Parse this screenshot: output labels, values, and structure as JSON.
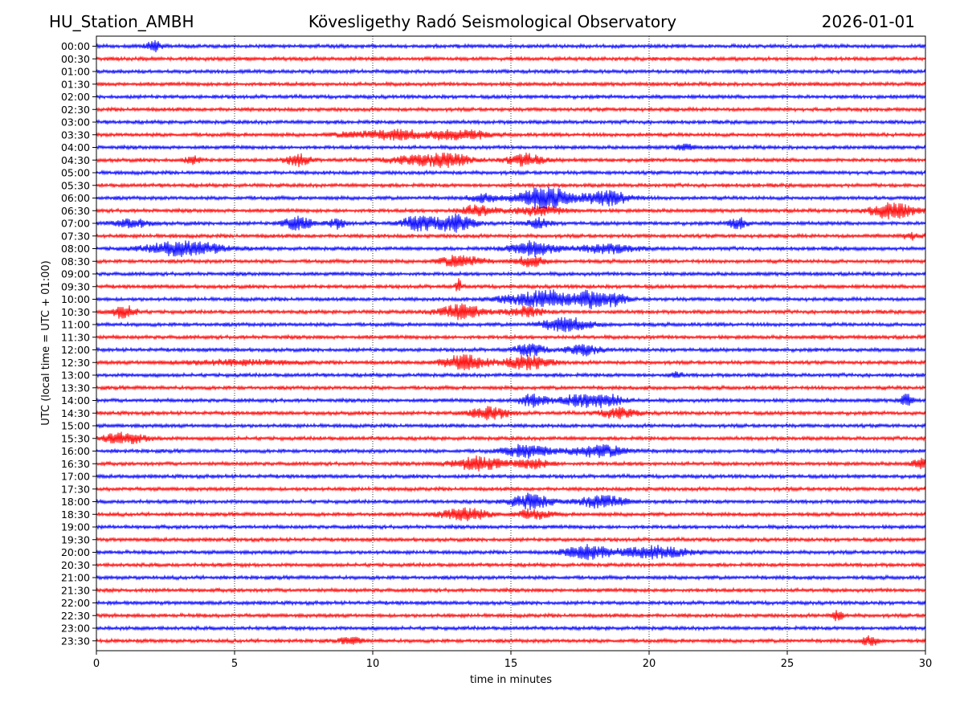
{
  "header": {
    "station": "HU_Station_AMBH",
    "observatory": "Kövesligethy Radó Seismological Observatory",
    "date": "2026-01-01"
  },
  "chart_data": {
    "type": "line",
    "title": "Kövesligethy Radó Seismological Observatory",
    "xlabel": "time in minutes",
    "ylabel": "UTC (local time = UTC + 01:00)",
    "xlim": [
      0,
      30
    ],
    "xticks": [
      "0",
      "5",
      "10",
      "15",
      "20",
      "25",
      "30"
    ],
    "xtick_values": [
      0,
      5,
      10,
      15,
      20,
      25,
      30
    ],
    "grid": "vertical dotted at x ticks",
    "colors": [
      "#0000ff",
      "#ff0000"
    ],
    "color_rule": "alternating per row, starting blue",
    "rows": [
      "00:00",
      "00:30",
      "01:00",
      "01:30",
      "02:00",
      "02:30",
      "03:00",
      "03:30",
      "04:00",
      "04:30",
      "05:00",
      "05:30",
      "06:00",
      "06:30",
      "07:00",
      "07:30",
      "08:00",
      "08:30",
      "09:00",
      "09:30",
      "10:00",
      "10:30",
      "11:00",
      "11:30",
      "12:00",
      "12:30",
      "13:00",
      "13:30",
      "14:00",
      "14:30",
      "15:00",
      "15:30",
      "16:00",
      "16:30",
      "17:00",
      "17:30",
      "18:00",
      "18:30",
      "19:00",
      "19:30",
      "20:00",
      "20:30",
      "21:00",
      "21:30",
      "22:00",
      "22:30",
      "23:00",
      "23:30"
    ],
    "bursts": [
      {
        "row": 0,
        "x": 2.1,
        "w": 0.25,
        "a": 1.6
      },
      {
        "row": 7,
        "x": 9.5,
        "w": 0.8,
        "a": 0.8
      },
      {
        "row": 7,
        "x": 11.0,
        "w": 0.8,
        "a": 1.4
      },
      {
        "row": 7,
        "x": 12.5,
        "w": 0.5,
        "a": 0.9
      },
      {
        "row": 7,
        "x": 13.4,
        "w": 0.7,
        "a": 1.3
      },
      {
        "row": 8,
        "x": 21.3,
        "w": 0.3,
        "a": 0.9
      },
      {
        "row": 9,
        "x": 3.5,
        "w": 0.3,
        "a": 1.0
      },
      {
        "row": 9,
        "x": 7.3,
        "w": 0.4,
        "a": 1.7
      },
      {
        "row": 9,
        "x": 11.5,
        "w": 0.9,
        "a": 1.2
      },
      {
        "row": 9,
        "x": 12.8,
        "w": 0.7,
        "a": 1.9
      },
      {
        "row": 9,
        "x": 15.5,
        "w": 0.6,
        "a": 1.8
      },
      {
        "row": 12,
        "x": 14.0,
        "w": 0.5,
        "a": 1.0
      },
      {
        "row": 12,
        "x": 16.2,
        "w": 1.0,
        "a": 3.0
      },
      {
        "row": 12,
        "x": 18.5,
        "w": 0.8,
        "a": 2.0
      },
      {
        "row": 13,
        "x": 13.8,
        "w": 0.6,
        "a": 1.5
      },
      {
        "row": 13,
        "x": 16.0,
        "w": 0.9,
        "a": 1.2
      },
      {
        "row": 13,
        "x": 28.8,
        "w": 0.8,
        "a": 2.2
      },
      {
        "row": 14,
        "x": 1.3,
        "w": 0.6,
        "a": 1.1
      },
      {
        "row": 14,
        "x": 7.3,
        "w": 0.5,
        "a": 2.0
      },
      {
        "row": 14,
        "x": 8.7,
        "w": 0.3,
        "a": 1.3
      },
      {
        "row": 14,
        "x": 11.7,
        "w": 0.6,
        "a": 2.1
      },
      {
        "row": 14,
        "x": 13.0,
        "w": 0.6,
        "a": 2.6
      },
      {
        "row": 14,
        "x": 16.0,
        "w": 0.4,
        "a": 1.3
      },
      {
        "row": 14,
        "x": 23.2,
        "w": 0.3,
        "a": 1.8
      },
      {
        "row": 15,
        "x": 29.5,
        "w": 0.3,
        "a": 0.8
      },
      {
        "row": 16,
        "x": 3.2,
        "w": 1.3,
        "a": 2.1
      },
      {
        "row": 16,
        "x": 15.8,
        "w": 0.8,
        "a": 2.2
      },
      {
        "row": 16,
        "x": 18.5,
        "w": 1.0,
        "a": 1.2
      },
      {
        "row": 17,
        "x": 13.2,
        "w": 0.7,
        "a": 1.7
      },
      {
        "row": 17,
        "x": 15.7,
        "w": 0.5,
        "a": 1.4
      },
      {
        "row": 19,
        "x": 13.1,
        "w": 0.1,
        "a": 2.0
      },
      {
        "row": 20,
        "x": 15.5,
        "w": 1.0,
        "a": 1.4
      },
      {
        "row": 20,
        "x": 16.5,
        "w": 0.7,
        "a": 2.0
      },
      {
        "row": 20,
        "x": 17.9,
        "w": 0.6,
        "a": 2.5
      },
      {
        "row": 20,
        "x": 18.8,
        "w": 0.4,
        "a": 1.5
      },
      {
        "row": 21,
        "x": 1.0,
        "w": 0.4,
        "a": 1.8
      },
      {
        "row": 21,
        "x": 13.2,
        "w": 0.8,
        "a": 2.1
      },
      {
        "row": 21,
        "x": 15.5,
        "w": 0.6,
        "a": 1.4
      },
      {
        "row": 22,
        "x": 17.0,
        "w": 0.8,
        "a": 2.0
      },
      {
        "row": 24,
        "x": 15.7,
        "w": 0.5,
        "a": 1.7
      },
      {
        "row": 24,
        "x": 17.6,
        "w": 0.6,
        "a": 1.4
      },
      {
        "row": 25,
        "x": 13.3,
        "w": 0.8,
        "a": 2.1
      },
      {
        "row": 25,
        "x": 15.6,
        "w": 0.8,
        "a": 1.9
      },
      {
        "row": 25,
        "x": 5.0,
        "w": 2.0,
        "a": 0.6
      },
      {
        "row": 26,
        "x": 21.0,
        "w": 0.2,
        "a": 0.7
      },
      {
        "row": 28,
        "x": 15.8,
        "w": 0.5,
        "a": 1.8
      },
      {
        "row": 28,
        "x": 17.5,
        "w": 0.8,
        "a": 1.5
      },
      {
        "row": 28,
        "x": 18.5,
        "w": 0.6,
        "a": 1.5
      },
      {
        "row": 28,
        "x": 29.3,
        "w": 0.2,
        "a": 2.0
      },
      {
        "row": 29,
        "x": 14.2,
        "w": 0.7,
        "a": 1.7
      },
      {
        "row": 29,
        "x": 18.9,
        "w": 0.6,
        "a": 1.5
      },
      {
        "row": 31,
        "x": 1.0,
        "w": 0.8,
        "a": 1.4
      },
      {
        "row": 32,
        "x": 15.6,
        "w": 0.8,
        "a": 1.8
      },
      {
        "row": 32,
        "x": 18.2,
        "w": 1.0,
        "a": 1.6
      },
      {
        "row": 33,
        "x": 13.8,
        "w": 0.9,
        "a": 1.9
      },
      {
        "row": 33,
        "x": 15.8,
        "w": 0.6,
        "a": 1.3
      },
      {
        "row": 33,
        "x": 29.8,
        "w": 0.3,
        "a": 1.2
      },
      {
        "row": 36,
        "x": 15.7,
        "w": 0.7,
        "a": 2.2
      },
      {
        "row": 36,
        "x": 18.3,
        "w": 0.8,
        "a": 1.8
      },
      {
        "row": 37,
        "x": 13.3,
        "w": 0.8,
        "a": 1.9
      },
      {
        "row": 37,
        "x": 15.8,
        "w": 0.6,
        "a": 1.3
      },
      {
        "row": 40,
        "x": 17.8,
        "w": 0.8,
        "a": 2.0
      },
      {
        "row": 40,
        "x": 20.2,
        "w": 1.2,
        "a": 1.6
      },
      {
        "row": 45,
        "x": 26.8,
        "w": 0.2,
        "a": 1.5
      },
      {
        "row": 47,
        "x": 9.2,
        "w": 0.4,
        "a": 0.9
      },
      {
        "row": 47,
        "x": 28.0,
        "w": 0.3,
        "a": 1.2
      }
    ]
  }
}
